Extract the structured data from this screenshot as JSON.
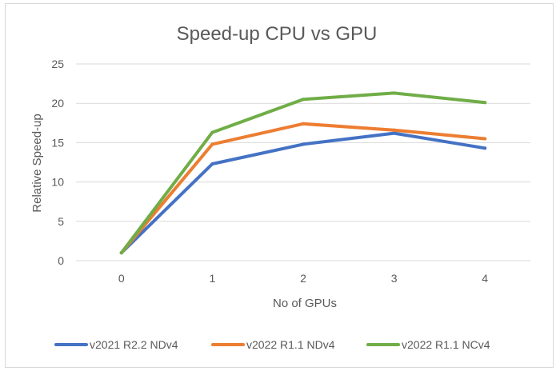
{
  "chart_data": {
    "type": "line",
    "title": "Speed-up CPU vs GPU",
    "xlabel": "No of GPUs",
    "ylabel": "Relative Speed-up",
    "x": [
      "0",
      "1",
      "2",
      "3",
      "4"
    ],
    "ylim": [
      0,
      25
    ],
    "yticks": [
      "0",
      "5",
      "10",
      "15",
      "20",
      "25"
    ],
    "grid": true,
    "legend_position": "bottom",
    "series": [
      {
        "name": "v2021 R2.2 NDv4",
        "color": "#4472C4",
        "values": [
          1,
          12.3,
          14.8,
          16.2,
          14.3
        ]
      },
      {
        "name": "v2022 R1.1 NDv4",
        "color": "#ED7D31",
        "values": [
          1,
          14.8,
          17.4,
          16.6,
          15.5
        ]
      },
      {
        "name": "v2022 R1.1 NCv4",
        "color": "#70AD47",
        "values": [
          1,
          16.3,
          20.5,
          21.3,
          20.1
        ]
      }
    ]
  }
}
